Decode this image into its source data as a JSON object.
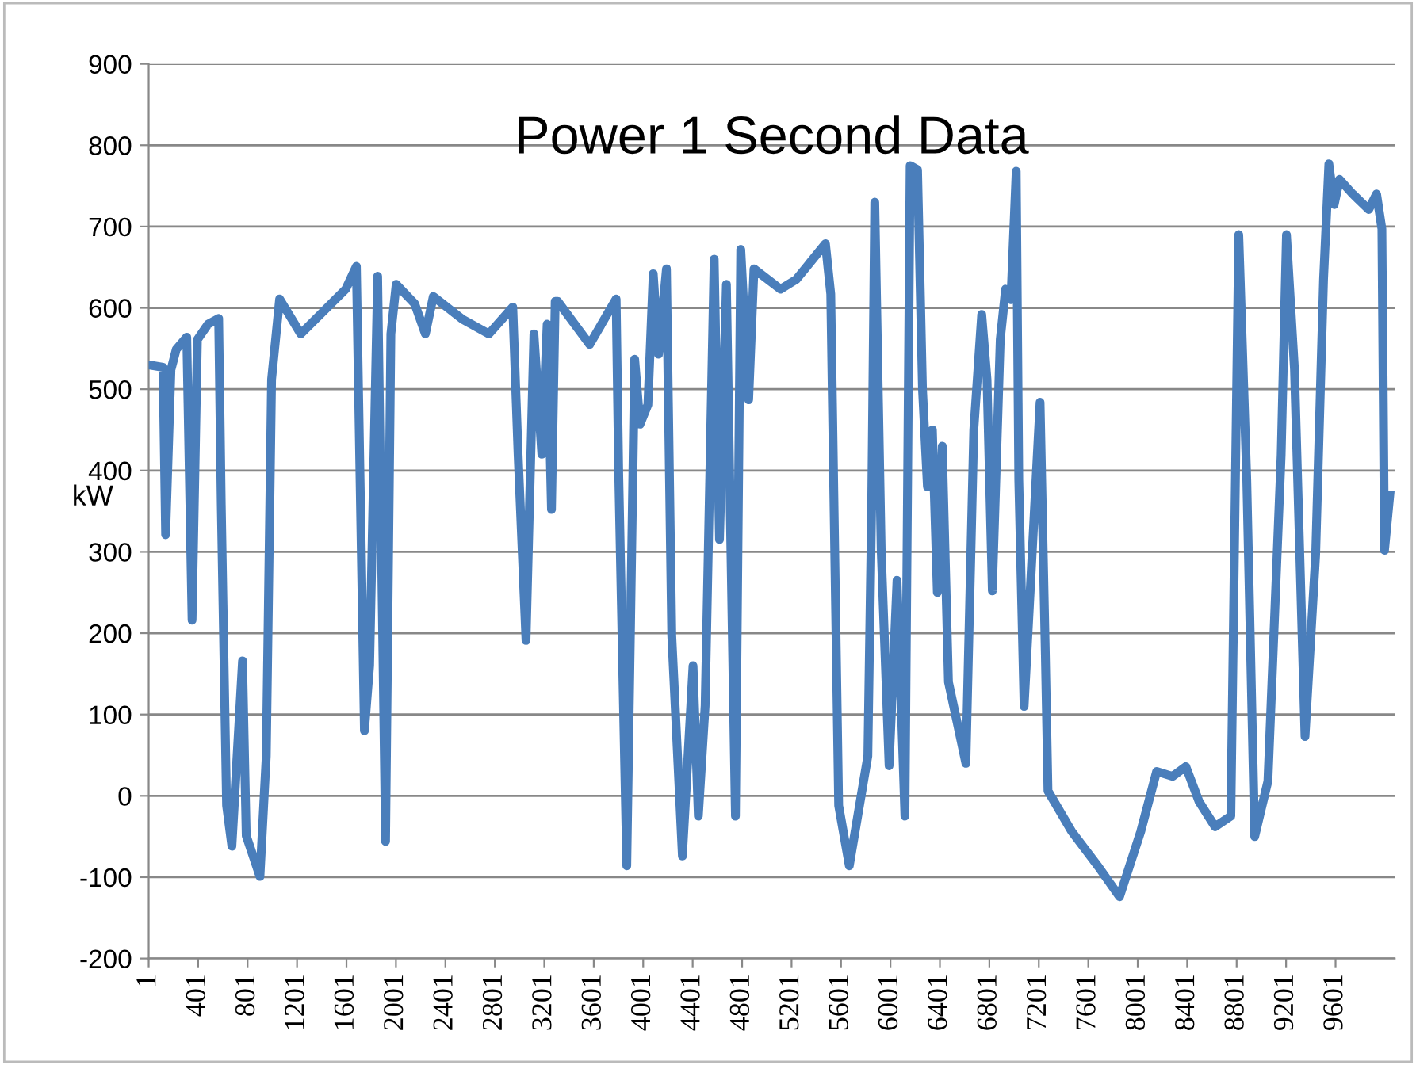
{
  "chart_data": {
    "type": "line",
    "title": "Power 1 Second Data",
    "ylabel": "kW",
    "x": [
      1,
      117,
      138,
      181,
      224,
      309,
      352,
      395,
      481,
      567,
      588,
      631,
      674,
      760,
      790,
      901,
      952,
      995,
      1060,
      1231,
      1595,
      1681,
      1746,
      1788,
      1853,
      1917,
      1960,
      2003,
      2153,
      2239,
      2303,
      2539,
      2753,
      2946,
      2989,
      3053,
      3117,
      3181,
      3224,
      3259,
      3289,
      3310,
      3568,
      3782,
      3803,
      3868,
      3932,
      3975,
      4039,
      4082,
      4125,
      4189,
      4232,
      4318,
      4404,
      4447,
      4502,
      4575,
      4618,
      4674,
      4747,
      4790,
      4854,
      4897,
      5111,
      5240,
      5475,
      5518,
      5582,
      5668,
      5818,
      5849,
      5874,
      5926,
      5990,
      6054,
      6118,
      6160,
      6220,
      6260,
      6300,
      6340,
      6380,
      6420,
      6470,
      6611,
      6675,
      6739,
      6782,
      6825,
      6889,
      6932,
      6975,
      7018,
      7039,
      7082,
      7125,
      7211,
      7254,
      7275,
      7468,
      7682,
      7854,
      8025,
      8154,
      8283,
      8390,
      8497,
      8626,
      8754,
      8818,
      8883,
      8947,
      9054,
      9161,
      9204,
      9269,
      9354,
      9440,
      9504,
      9547,
      9590,
      9633,
      9740,
      9869,
      9933,
      9976,
      9997,
      10040
    ],
    "series": [
      {
        "color": "#4a7ebb",
        "values": [
          530,
          527,
          321,
          524,
          549,
          564,
          216,
          561,
          580,
          587,
          358,
          -12,
          -62,
          166,
          -49,
          -99,
          49,
          512,
          611,
          568,
          623,
          651,
          80,
          160,
          639,
          -56,
          568,
          629,
          605,
          568,
          614,
          586,
          568,
          601,
          420,
          191,
          568,
          420,
          580,
          352,
          608,
          608,
          555,
          611,
          395,
          -86,
          537,
          457,
          481,
          642,
          543,
          648,
          197,
          -74,
          160,
          -25,
          111,
          660,
          315,
          629,
          -25,
          672,
          487,
          648,
          623,
          635,
          679,
          617,
          -12,
          -86,
          49,
          358,
          730,
          302,
          37,
          265,
          -25,
          775,
          770,
          500,
          380,
          450,
          250,
          430,
          140,
          40,
          450,
          592,
          512,
          252,
          561,
          623,
          610,
          768,
          388,
          110,
          234,
          484,
          172,
          6,
          -44,
          -87,
          -124,
          -44,
          30,
          24,
          36,
          -7,
          -38,
          -25,
          690,
          388,
          -50,
          18,
          419,
          690,
          524,
          73,
          296,
          635,
          777,
          727,
          758,
          740,
          721,
          740,
          697,
          302,
          370
        ]
      }
    ],
    "xlim": [
      1,
      10080
    ],
    "xticks": [
      1,
      401,
      801,
      1201,
      1601,
      2001,
      2401,
      2801,
      3201,
      3601,
      4001,
      4401,
      4801,
      5201,
      5601,
      6001,
      6401,
      6801,
      7201,
      7601,
      8001,
      8401,
      8801,
      9201,
      9601
    ],
    "ylim": [
      -200,
      900
    ],
    "yticks": [
      -200,
      -100,
      0,
      100,
      200,
      300,
      400,
      500,
      600,
      700,
      800,
      900
    ],
    "grid": "y",
    "legend": false,
    "marker": "none",
    "line_style": "solid"
  }
}
